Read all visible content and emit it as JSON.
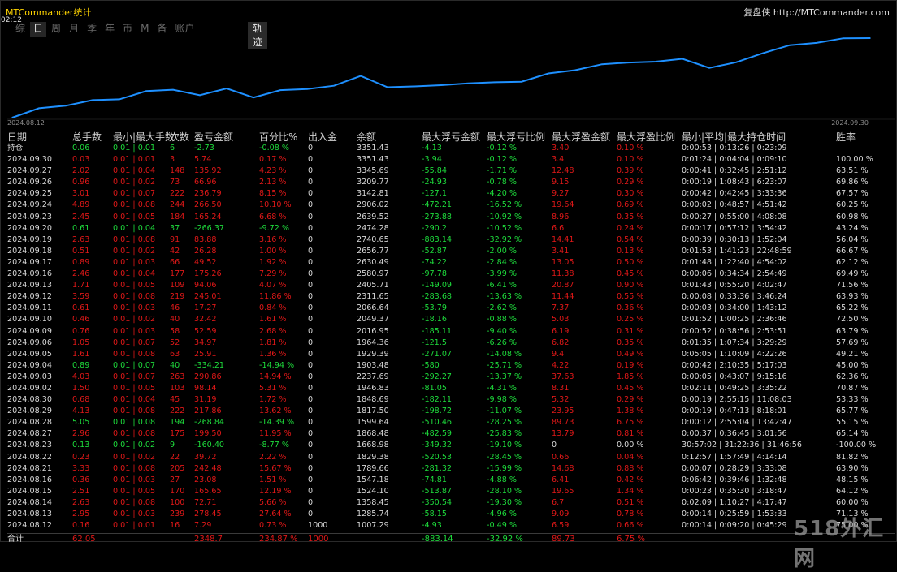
{
  "window": {
    "title": "MTCommander统计",
    "clock": "02:12",
    "brand": "复盘侠 http://MTCommander.com"
  },
  "tabs": [
    "综",
    "日",
    "周",
    "月",
    "季",
    "年",
    "币",
    "M",
    "备",
    "账户"
  ],
  "active_tab": "日",
  "track_tab": "轨迹",
  "chart": {
    "start_label": "2024.08.12",
    "end_label": "2024.09.30",
    "line_color": "#1e90ff"
  },
  "chart_data": {
    "type": "line",
    "x": [
      "2024.08.12",
      "2024.08.13",
      "2024.08.14",
      "2024.08.15",
      "2024.08.16",
      "2024.08.21",
      "2024.08.22",
      "2024.08.23",
      "2024.08.27",
      "2024.08.28",
      "2024.08.29",
      "2024.08.30",
      "2024.09.02",
      "2024.09.03",
      "2024.09.04",
      "2024.09.05",
      "2024.09.06",
      "2024.09.09",
      "2024.09.10",
      "2024.09.11",
      "2024.09.12",
      "2024.09.13",
      "2024.09.16",
      "2024.09.17",
      "2024.09.18",
      "2024.09.19",
      "2024.09.20",
      "2024.09.23",
      "2024.09.24",
      "2024.09.25",
      "2024.09.26",
      "2024.09.27",
      "2024.09.30"
    ],
    "y": [
      1007.29,
      1285.74,
      1358.45,
      1524.1,
      1547.18,
      1789.66,
      1829.38,
      1668.98,
      1868.48,
      1599.64,
      1817.5,
      1848.69,
      1946.83,
      2237.69,
      1903.48,
      1929.39,
      1964.36,
      2016.95,
      2049.37,
      2066.64,
      2311.65,
      2405.71,
      2580.97,
      2630.49,
      2656.77,
      2740.65,
      2474.28,
      2639.52,
      2906.02,
      3142.81,
      3209.77,
      3345.69,
      3351.43
    ]
  },
  "headers": [
    "日期",
    "总手数",
    "最小|最大手数",
    "次数",
    "盈亏金额",
    "百分比%",
    "出入金",
    "余额",
    "最大浮亏金额",
    "最大浮亏比例",
    "最大浮盈金额",
    "最大浮盈比例",
    "最小|平均|最大持仓时间",
    "胜率"
  ],
  "holding": {
    "label": "持仓",
    "lots": "0.06",
    "minmax": "0.01 | 0.01",
    "count": "6",
    "pnl": "-2.73",
    "pct": "-0.08 %",
    "io": "0",
    "balance": "3351.43",
    "mfl": "-4.13",
    "mflp": "-0.12 %",
    "mfp": "3.40",
    "mfpp": "0.10 %",
    "hold": "0:00:53 | 0:13:26 | 0:23:09",
    "win": ""
  },
  "rows": [
    {
      "date": "2024.09.30",
      "lots": "0.03",
      "minmax": "0.01 | 0.01",
      "count": "3",
      "pnl": "5.74",
      "pct": "0.17 %",
      "io": "0",
      "balance": "3351.43",
      "mfl": "-3.94",
      "mflp": "-0.12 %",
      "mfp": "3.4",
      "mfpp": "0.10 %",
      "hold": "0:01:24 | 0:04:04 | 0:09:10",
      "win": "100.00 %"
    },
    {
      "date": "2024.09.27",
      "lots": "2.02",
      "minmax": "0.01 | 0.04",
      "count": "148",
      "pnl": "135.92",
      "pct": "4.23 %",
      "io": "0",
      "balance": "3345.69",
      "mfl": "-55.84",
      "mflp": "-1.71 %",
      "mfp": "12.48",
      "mfpp": "0.39 %",
      "hold": "0:00:41 | 0:32:45 | 2:51:12",
      "win": "63.51 %"
    },
    {
      "date": "2024.09.26",
      "lots": "0.96",
      "minmax": "0.01 | 0.02",
      "count": "73",
      "pnl": "66.96",
      "pct": "2.13 %",
      "io": "0",
      "balance": "3209.77",
      "mfl": "-24.93",
      "mflp": "-0.78 %",
      "mfp": "9.15",
      "mfpp": "0.29 %",
      "hold": "0:00:19 | 1:08:43 | 6:23:07",
      "win": "69.86 %"
    },
    {
      "date": "2024.09.25",
      "lots": "3.01",
      "minmax": "0.01 | 0.07",
      "count": "222",
      "pnl": "236.79",
      "pct": "8.15 %",
      "io": "0",
      "balance": "3142.81",
      "mfl": "-127.1",
      "mflp": "-4.20 %",
      "mfp": "9.27",
      "mfpp": "0.30 %",
      "hold": "0:00:42 | 0:42:45 | 3:33:36",
      "win": "67.57 %"
    },
    {
      "date": "2024.09.24",
      "lots": "4.89",
      "minmax": "0.01 | 0.08",
      "count": "244",
      "pnl": "266.50",
      "pct": "10.10 %",
      "io": "0",
      "balance": "2906.02",
      "mfl": "-472.21",
      "mflp": "-16.52 %",
      "mfp": "19.64",
      "mfpp": "0.69 %",
      "hold": "0:00:02 | 0:48:57 | 4:51:42",
      "win": "60.25 %"
    },
    {
      "date": "2024.09.23",
      "lots": "2.45",
      "minmax": "0.01 | 0.05",
      "count": "184",
      "pnl": "165.24",
      "pct": "6.68 %",
      "io": "0",
      "balance": "2639.52",
      "mfl": "-273.88",
      "mflp": "-10.92 %",
      "mfp": "8.96",
      "mfpp": "0.35 %",
      "hold": "0:00:27 | 0:55:00 | 4:08:08",
      "win": "60.98 %"
    },
    {
      "date": "2024.09.20",
      "lots": "0.61",
      "minmax": "0.01 | 0.04",
      "count": "37",
      "pnl": "-266.37",
      "pct": "-9.72 %",
      "io": "0",
      "balance": "2474.28",
      "mfl": "-290.2",
      "mflp": "-10.52 %",
      "mfp": "6.6",
      "mfpp": "0.24 %",
      "hold": "0:00:17 | 0:57:12 | 3:54:42",
      "win": "43.24 %"
    },
    {
      "date": "2024.09.19",
      "lots": "2.63",
      "minmax": "0.01 | 0.08",
      "count": "91",
      "pnl": "83.88",
      "pct": "3.16 %",
      "io": "0",
      "balance": "2740.65",
      "mfl": "-883.14",
      "mflp": "-32.92 %",
      "mfp": "14.41",
      "mfpp": "0.54 %",
      "hold": "0:00:39 | 0:30:13 | 1:52:04",
      "win": "56.04 %"
    },
    {
      "date": "2024.09.18",
      "lots": "0.51",
      "minmax": "0.01 | 0.02",
      "count": "42",
      "pnl": "26.28",
      "pct": "1.00 %",
      "io": "0",
      "balance": "2656.77",
      "mfl": "-52.87",
      "mflp": "-2.00 %",
      "mfp": "3.41",
      "mfpp": "0.13 %",
      "hold": "0:01:53 | 1:41:23 | 22:48:59",
      "win": "66.67 %"
    },
    {
      "date": "2024.09.17",
      "lots": "0.89",
      "minmax": "0.01 | 0.03",
      "count": "66",
      "pnl": "49.52",
      "pct": "1.92 %",
      "io": "0",
      "balance": "2630.49",
      "mfl": "-74.22",
      "mflp": "-2.84 %",
      "mfp": "13.05",
      "mfpp": "0.50 %",
      "hold": "0:01:48 | 1:22:40 | 4:54:02",
      "win": "62.12 %"
    },
    {
      "date": "2024.09.16",
      "lots": "2.46",
      "minmax": "0.01 | 0.04",
      "count": "177",
      "pnl": "175.26",
      "pct": "7.29 %",
      "io": "0",
      "balance": "2580.97",
      "mfl": "-97.78",
      "mflp": "-3.99 %",
      "mfp": "11.38",
      "mfpp": "0.45 %",
      "hold": "0:00:06 | 0:34:34 | 2:54:49",
      "win": "69.49 %"
    },
    {
      "date": "2024.09.13",
      "lots": "1.71",
      "minmax": "0.01 | 0.05",
      "count": "109",
      "pnl": "94.06",
      "pct": "4.07 %",
      "io": "0",
      "balance": "2405.71",
      "mfl": "-149.09",
      "mflp": "-6.41 %",
      "mfp": "20.87",
      "mfpp": "0.90 %",
      "hold": "0:01:43 | 0:55:20 | 4:02:47",
      "win": "71.56 %"
    },
    {
      "date": "2024.09.12",
      "lots": "3.59",
      "minmax": "0.01 | 0.08",
      "count": "219",
      "pnl": "245.01",
      "pct": "11.86 %",
      "io": "0",
      "balance": "2311.65",
      "mfl": "-283.68",
      "mflp": "-13.63 %",
      "mfp": "11.44",
      "mfpp": "0.55 %",
      "hold": "0:00:08 | 0:33:36 | 3:46:24",
      "win": "63.93 %"
    },
    {
      "date": "2024.09.11",
      "lots": "0.61",
      "minmax": "0.01 | 0.03",
      "count": "46",
      "pnl": "17.27",
      "pct": "0.84 %",
      "io": "0",
      "balance": "2066.64",
      "mfl": "-53.79",
      "mflp": "-2.62 %",
      "mfp": "7.37",
      "mfpp": "0.36 %",
      "hold": "0:00:03 | 0:34:00 | 1:43:12",
      "win": "65.22 %"
    },
    {
      "date": "2024.09.10",
      "lots": "0.46",
      "minmax": "0.01 | 0.02",
      "count": "40",
      "pnl": "32.42",
      "pct": "1.61 %",
      "io": "0",
      "balance": "2049.37",
      "mfl": "-18.16",
      "mflp": "-0.88 %",
      "mfp": "5.03",
      "mfpp": "0.25 %",
      "hold": "0:01:52 | 1:00:25 | 2:36:46",
      "win": "72.50 %"
    },
    {
      "date": "2024.09.09",
      "lots": "0.76",
      "minmax": "0.01 | 0.03",
      "count": "58",
      "pnl": "52.59",
      "pct": "2.68 %",
      "io": "0",
      "balance": "2016.95",
      "mfl": "-185.11",
      "mflp": "-9.40 %",
      "mfp": "6.19",
      "mfpp": "0.31 %",
      "hold": "0:00:52 | 0:38:56 | 2:53:51",
      "win": "63.79 %"
    },
    {
      "date": "2024.09.06",
      "lots": "1.05",
      "minmax": "0.01 | 0.07",
      "count": "52",
      "pnl": "34.97",
      "pct": "1.81 %",
      "io": "0",
      "balance": "1964.36",
      "mfl": "-121.5",
      "mflp": "-6.26 %",
      "mfp": "6.82",
      "mfpp": "0.35 %",
      "hold": "0:01:35 | 1:07:34 | 3:29:29",
      "win": "57.69 %"
    },
    {
      "date": "2024.09.05",
      "lots": "1.61",
      "minmax": "0.01 | 0.08",
      "count": "63",
      "pnl": "25.91",
      "pct": "1.36 %",
      "io": "0",
      "balance": "1929.39",
      "mfl": "-271.07",
      "mflp": "-14.08 %",
      "mfp": "9.4",
      "mfpp": "0.49 %",
      "hold": "0:05:05 | 1:10:09 | 4:22:26",
      "win": "49.21 %"
    },
    {
      "date": "2024.09.04",
      "lots": "0.89",
      "minmax": "0.01 | 0.07",
      "count": "40",
      "pnl": "-334.21",
      "pct": "-14.94 %",
      "io": "0",
      "balance": "1903.48",
      "mfl": "-580",
      "mflp": "-25.71 %",
      "mfp": "4.22",
      "mfpp": "0.19 %",
      "hold": "0:00:42 | 2:10:35 | 5:17:03",
      "win": "45.00 %"
    },
    {
      "date": "2024.09.03",
      "lots": "4.03",
      "minmax": "0.01 | 0.07",
      "count": "263",
      "pnl": "290.86",
      "pct": "14.94 %",
      "io": "0",
      "balance": "2237.69",
      "mfl": "-292.27",
      "mflp": "-13.37 %",
      "mfp": "37.63",
      "mfpp": "1.85 %",
      "hold": "0:00:05 | 0:43:07 | 9:15:16",
      "win": "62.36 %"
    },
    {
      "date": "2024.09.02",
      "lots": "1.50",
      "minmax": "0.01 | 0.05",
      "count": "103",
      "pnl": "98.14",
      "pct": "5.31 %",
      "io": "0",
      "balance": "1946.83",
      "mfl": "-81.05",
      "mflp": "-4.31 %",
      "mfp": "8.31",
      "mfpp": "0.45 %",
      "hold": "0:02:11 | 0:49:25 | 3:35:22",
      "win": "70.87 %"
    },
    {
      "date": "2024.08.30",
      "lots": "0.68",
      "minmax": "0.01 | 0.04",
      "count": "45",
      "pnl": "31.19",
      "pct": "1.72 %",
      "io": "0",
      "balance": "1848.69",
      "mfl": "-182.11",
      "mflp": "-9.98 %",
      "mfp": "5.32",
      "mfpp": "0.29 %",
      "hold": "0:00:19 | 2:55:15 | 11:08:03",
      "win": "53.33 %"
    },
    {
      "date": "2024.08.29",
      "lots": "4.13",
      "minmax": "0.01 | 0.08",
      "count": "222",
      "pnl": "217.86",
      "pct": "13.62 %",
      "io": "0",
      "balance": "1817.50",
      "mfl": "-198.72",
      "mflp": "-11.07 %",
      "mfp": "23.95",
      "mfpp": "1.38 %",
      "hold": "0:00:19 | 0:47:13 | 8:18:01",
      "win": "65.77 %"
    },
    {
      "date": "2024.08.28",
      "lots": "5.05",
      "minmax": "0.01 | 0.08",
      "count": "194",
      "pnl": "-268.84",
      "pct": "-14.39 %",
      "io": "0",
      "balance": "1599.64",
      "mfl": "-510.46",
      "mflp": "-28.25 %",
      "mfp": "89.73",
      "mfpp": "6.75 %",
      "hold": "0:00:12 | 2:55:04 | 13:42:47",
      "win": "55.15 %"
    },
    {
      "date": "2024.08.27",
      "lots": "2.96",
      "minmax": "0.01 | 0.08",
      "count": "175",
      "pnl": "199.50",
      "pct": "11.95 %",
      "io": "0",
      "balance": "1868.48",
      "mfl": "-482.59",
      "mflp": "-25.83 %",
      "mfp": "13.79",
      "mfpp": "0.81 %",
      "hold": "0:00:37 | 0:36:45 | 3:01:56",
      "win": "65.14 %"
    },
    {
      "date": "2024.08.23",
      "lots": "0.13",
      "minmax": "0.01 | 0.02",
      "count": "9",
      "pnl": "-160.40",
      "pct": "-8.77 %",
      "io": "0",
      "balance": "1668.98",
      "mfl": "-349.32",
      "mflp": "-19.10 %",
      "mfp": "0",
      "mfpp": "0.00 %",
      "hold": "30:57:02 | 31:22:36 | 31:46:56",
      "win": "-100.00 %"
    },
    {
      "date": "2024.08.22",
      "lots": "0.23",
      "minmax": "0.01 | 0.02",
      "count": "22",
      "pnl": "39.72",
      "pct": "2.22 %",
      "io": "0",
      "balance": "1829.38",
      "mfl": "-520.53",
      "mflp": "-28.45 %",
      "mfp": "0.66",
      "mfpp": "0.04 %",
      "hold": "0:12:57 | 1:57:49 | 4:14:14",
      "win": "81.82 %"
    },
    {
      "date": "2024.08.21",
      "lots": "3.33",
      "minmax": "0.01 | 0.08",
      "count": "205",
      "pnl": "242.48",
      "pct": "15.67 %",
      "io": "0",
      "balance": "1789.66",
      "mfl": "-281.32",
      "mflp": "-15.99 %",
      "mfp": "14.68",
      "mfpp": "0.88 %",
      "hold": "0:00:07 | 0:28:29 | 3:33:08",
      "win": "63.90 %"
    },
    {
      "date": "2024.08.16",
      "lots": "0.36",
      "minmax": "0.01 | 0.03",
      "count": "27",
      "pnl": "23.08",
      "pct": "1.51 %",
      "io": "0",
      "balance": "1547.18",
      "mfl": "-74.81",
      "mflp": "-4.88 %",
      "mfp": "6.41",
      "mfpp": "0.42 %",
      "hold": "0:06:42 | 0:39:46 | 1:32:48",
      "win": "48.15 %"
    },
    {
      "date": "2024.08.15",
      "lots": "2.51",
      "minmax": "0.01 | 0.05",
      "count": "170",
      "pnl": "165.65",
      "pct": "12.19 %",
      "io": "0",
      "balance": "1524.10",
      "mfl": "-513.87",
      "mflp": "-28.10 %",
      "mfp": "19.65",
      "mfpp": "1.34 %",
      "hold": "0:00:23 | 0:35:30 | 3:18:47",
      "win": "64.12 %"
    },
    {
      "date": "2024.08.14",
      "lots": "2.63",
      "minmax": "0.01 | 0.08",
      "count": "100",
      "pnl": "72.71",
      "pct": "5.66 %",
      "io": "0",
      "balance": "1358.45",
      "mfl": "-350.54",
      "mflp": "-19.30 %",
      "mfp": "6.7",
      "mfpp": "0.51 %",
      "hold": "0:02:09 | 1:10:27 | 4:17:47",
      "win": "60.00 %"
    },
    {
      "date": "2024.08.13",
      "lots": "2.95",
      "minmax": "0.01 | 0.03",
      "count": "239",
      "pnl": "278.45",
      "pct": "27.64 %",
      "io": "0",
      "balance": "1285.74",
      "mfl": "-58.15",
      "mflp": "-4.96 %",
      "mfp": "9.09",
      "mfpp": "0.78 %",
      "hold": "0:00:14 | 0:25:59 | 1:53:33",
      "win": "71.13 %"
    },
    {
      "date": "2024.08.12",
      "lots": "0.16",
      "minmax": "0.01 | 0.01",
      "count": "16",
      "pnl": "7.29",
      "pct": "0.73 %",
      "io": "1000",
      "balance": "1007.29",
      "mfl": "-4.93",
      "mflp": "-0.49 %",
      "mfp": "6.59",
      "mfpp": "0.66 %",
      "hold": "0:00:14 | 0:09:20 | 0:45:29",
      "win": "75.00 %"
    }
  ],
  "footer": {
    "label": "合计",
    "lots": "62.05",
    "pnl": "2348.7",
    "pct": "234.87 %",
    "io": "1000",
    "mfl": "-883.14",
    "mflp": "-32.92 %",
    "mfp": "89.73",
    "mfpp": "6.75 %"
  },
  "watermark": "518外汇网"
}
